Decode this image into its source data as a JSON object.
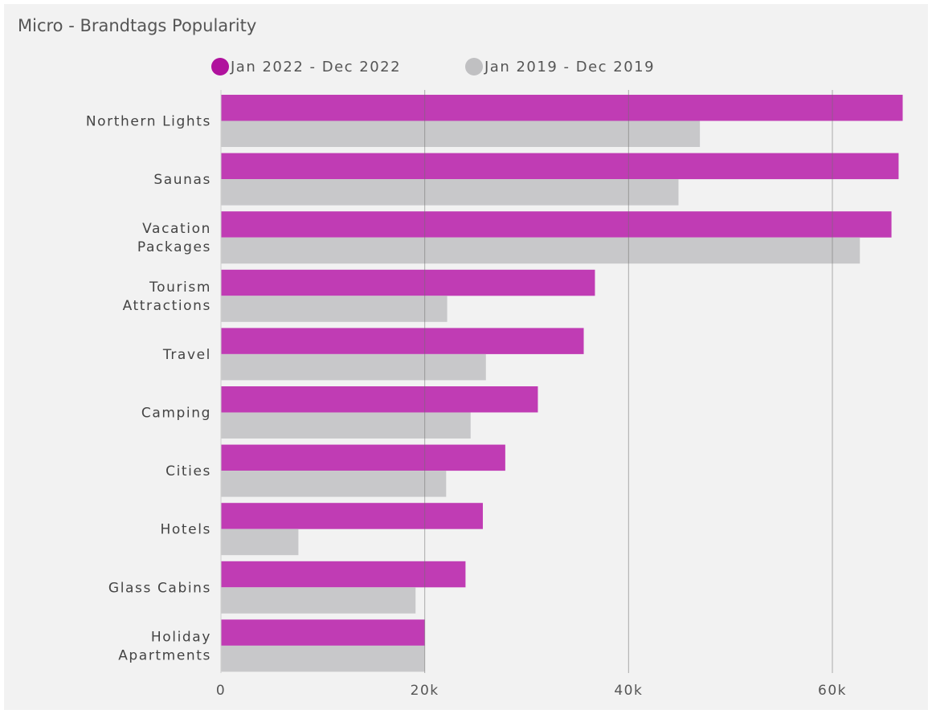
{
  "chart_data": {
    "type": "bar",
    "orientation": "horizontal",
    "title": "Micro - Brandtags Popularity",
    "categories": [
      [
        "Northern Lights"
      ],
      [
        "Saunas"
      ],
      [
        "Vacation",
        "Packages"
      ],
      [
        "Tourism",
        "Attractions"
      ],
      [
        "Travel"
      ],
      [
        "Camping"
      ],
      [
        "Cities"
      ],
      [
        "Hotels"
      ],
      [
        "Glass Cabins"
      ],
      [
        "Holiday",
        "Apartments"
      ]
    ],
    "series": [
      {
        "name": "Jan 2022 - Dec 2022",
        "color": "#c03cb4",
        "swatch": "#b0129d",
        "values": [
          66900,
          66500,
          65800,
          36700,
          35600,
          31100,
          27900,
          25700,
          24000,
          20000
        ]
      },
      {
        "name": "Jan 2019 - Dec 2019",
        "color": "#c8c8ca",
        "swatch": "#c0c0c2",
        "values": [
          47000,
          44900,
          62700,
          22200,
          26000,
          24500,
          22100,
          7600,
          19100,
          20000
        ]
      }
    ],
    "xlim": [
      0,
      67500
    ],
    "xticks": [
      0,
      20000,
      40000,
      60000
    ],
    "xtick_labels": [
      "0",
      "20k",
      "40k",
      "60k"
    ],
    "grid": true,
    "legend_position": "top"
  }
}
